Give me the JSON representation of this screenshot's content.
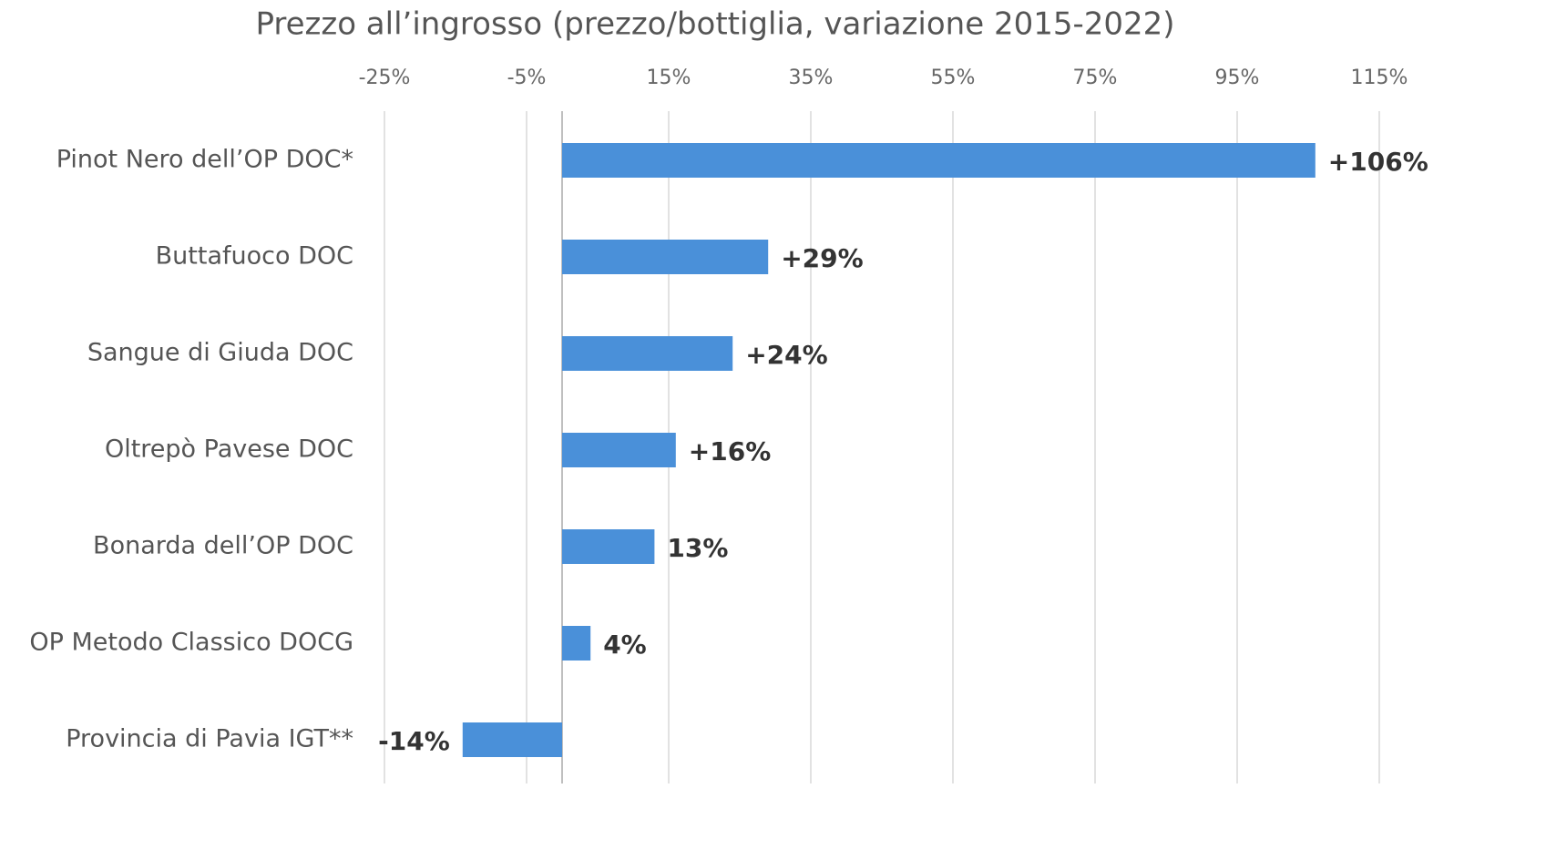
{
  "chart_data": {
    "type": "hbar",
    "title": "Prezzo all’ingrosso (prezzo/bottiglia, variazione 2015-2022)",
    "categories": [
      "Pinot Nero dell’OP DOC*",
      "Buttafuoco DOC",
      "Sangue di Giuda DOC",
      "Oltrepò Pavese DOC",
      "Bonarda dell’OP DOC",
      "OP Metodo Classico DOCG",
      "Provincia di Pavia IGT**"
    ],
    "values": [
      106,
      29,
      24,
      16,
      13,
      4,
      -14
    ],
    "value_labels": [
      "+106%",
      "+29%",
      "+24%",
      "+16%",
      "13%",
      "4%",
      "-14%"
    ],
    "color": "#4a90d9",
    "xlim": [
      -25,
      115
    ],
    "xticks": [
      {
        "value": -25,
        "label": "-25%"
      },
      {
        "value": -5,
        "label": "-5%"
      },
      {
        "value": 15,
        "label": "15%"
      },
      {
        "value": 35,
        "label": "35%"
      },
      {
        "value": 55,
        "label": "55%"
      },
      {
        "value": 75,
        "label": "75%"
      },
      {
        "value": 95,
        "label": "95%"
      },
      {
        "value": 115,
        "label": "115%"
      }
    ],
    "grid": true
  }
}
